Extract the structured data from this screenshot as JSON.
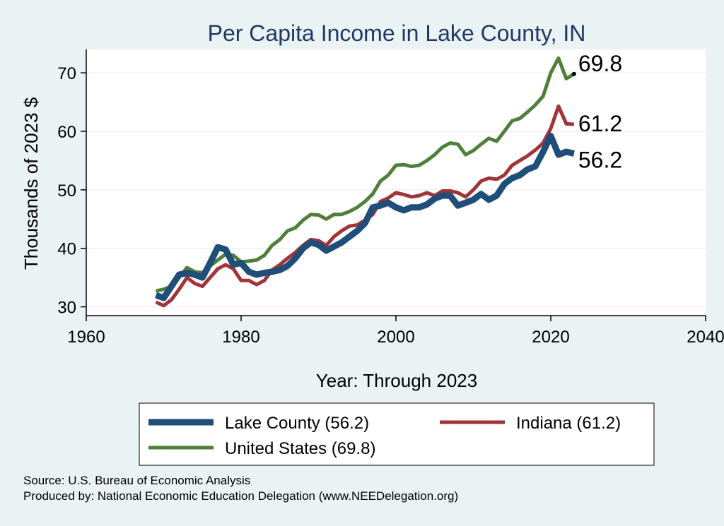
{
  "chart_data": {
    "type": "line",
    "title": "Per Capita Income in Lake County, IN",
    "xlabel": "Year: Through 2023",
    "ylabel": "Thousands of 2023 $",
    "xlim": [
      1960,
      2040
    ],
    "ylim": [
      28.5,
      74
    ],
    "xticks": [
      1960,
      1980,
      2000,
      2020,
      2040
    ],
    "yticks": [
      30,
      40,
      50,
      60,
      70
    ],
    "grid": "horizontal",
    "legend_position": "bottom",
    "x": [
      1969,
      1970,
      1971,
      1972,
      1973,
      1974,
      1975,
      1976,
      1977,
      1978,
      1979,
      1980,
      1981,
      1982,
      1983,
      1984,
      1985,
      1986,
      1987,
      1988,
      1989,
      1990,
      1991,
      1992,
      1993,
      1994,
      1995,
      1996,
      1997,
      1998,
      1999,
      2000,
      2001,
      2002,
      2003,
      2004,
      2005,
      2006,
      2007,
      2008,
      2009,
      2010,
      2011,
      2012,
      2013,
      2014,
      2015,
      2016,
      2017,
      2018,
      2019,
      2020,
      2021,
      2022,
      2023
    ],
    "series": [
      {
        "name": "Lake County (56.2)",
        "color": "#1f4e79",
        "end_label": "56.2",
        "values": [
          32.0,
          31.5,
          33.5,
          35.5,
          35.8,
          35.5,
          35.0,
          37.5,
          40.2,
          39.8,
          37.2,
          37.5,
          36.0,
          35.5,
          35.8,
          36.0,
          36.3,
          37.0,
          38.3,
          40.0,
          41.0,
          40.6,
          39.6,
          40.3,
          41.0,
          42.0,
          43.0,
          44.3,
          47.0,
          47.3,
          47.8,
          47.0,
          46.5,
          47.0,
          47.0,
          47.5,
          48.5,
          49.0,
          49.0,
          47.3,
          47.8,
          48.3,
          49.3,
          48.3,
          49.0,
          51.0,
          52.0,
          52.5,
          53.5,
          54.0,
          56.5,
          59.2,
          56.0,
          56.5,
          56.2
        ]
      },
      {
        "name": "Indiana (61.2)",
        "color": "#a03438",
        "end_label": "61.2",
        "values": [
          30.8,
          30.2,
          31.2,
          33.0,
          35.0,
          34.0,
          33.5,
          35.0,
          36.5,
          37.2,
          36.5,
          34.5,
          34.5,
          33.8,
          34.5,
          36.3,
          37.2,
          38.3,
          39.3,
          40.5,
          41.5,
          41.3,
          40.5,
          42.0,
          43.0,
          43.8,
          44.0,
          44.8,
          45.8,
          48.0,
          48.6,
          49.5,
          49.2,
          48.8,
          49.0,
          49.5,
          49.0,
          49.8,
          49.8,
          49.5,
          48.8,
          50.0,
          51.5,
          52.0,
          51.8,
          52.5,
          54.2,
          55.0,
          55.8,
          56.8,
          58.0,
          60.5,
          64.3,
          61.3,
          61.2
        ]
      },
      {
        "name": "United States (69.8)",
        "color": "#4f7f3a",
        "end_label": "69.8",
        "values": [
          32.7,
          33.0,
          33.5,
          35.0,
          36.7,
          36.0,
          35.8,
          37.0,
          38.0,
          39.0,
          38.8,
          37.7,
          37.8,
          38.0,
          38.8,
          40.5,
          41.5,
          43.0,
          43.5,
          44.8,
          45.8,
          45.7,
          45.0,
          45.8,
          45.8,
          46.3,
          47.0,
          48.0,
          49.3,
          51.5,
          52.5,
          54.2,
          54.3,
          54.0,
          54.2,
          55.0,
          56.0,
          57.3,
          58.0,
          57.8,
          56.0,
          56.7,
          57.8,
          58.8,
          58.3,
          60.0,
          61.8,
          62.2,
          63.3,
          64.5,
          66.0,
          70.0,
          72.5,
          69.0,
          69.8
        ]
      }
    ]
  },
  "legend": {
    "items": [
      {
        "label": "Lake County (56.2)",
        "color": "#1f4e79"
      },
      {
        "label": "Indiana (61.2)",
        "color": "#a03438"
      },
      {
        "label": "United States (69.8)",
        "color": "#4f7f3a"
      }
    ]
  },
  "footer": {
    "source": "Source: U.S. Bureau of Economic Analysis",
    "produced_by": "Produced by: National Economic Education Delegation (www.NEEDelegation.org)"
  },
  "colors": {
    "background": "#eaf2f3",
    "plot_background": "#ffffff",
    "title": "#1f3864"
  }
}
